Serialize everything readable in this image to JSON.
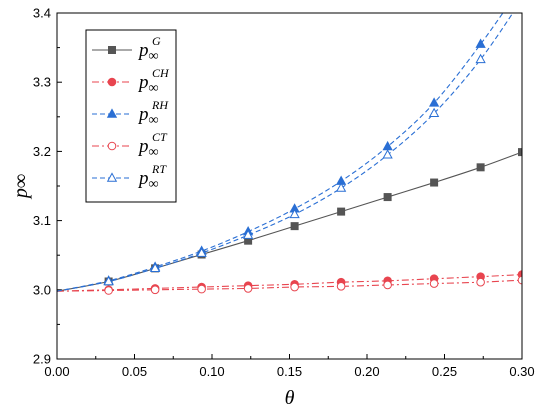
{
  "chart_data": {
    "type": "line",
    "xlabel": "θ",
    "ylabel": "p∞",
    "xlim": [
      0.0,
      0.3
    ],
    "ylim": [
      2.9,
      3.4
    ],
    "xticks": [
      "0.00",
      "0.05",
      "0.10",
      "0.15",
      "0.20",
      "0.25",
      "0.30"
    ],
    "yticks": [
      "2.9",
      "3.0",
      "3.1",
      "3.2",
      "3.3",
      "3.4"
    ],
    "grid": false,
    "legend_position": "top-left",
    "x": [
      0.0,
      0.0333,
      0.0633,
      0.0933,
      0.1233,
      0.1533,
      0.1833,
      0.2133,
      0.2433,
      0.2733,
      0.3
    ],
    "series": [
      {
        "name": "G",
        "color": "#555555",
        "style": "solid",
        "marker": "square-filled",
        "values": [
          2.998,
          3.012,
          3.031,
          3.051,
          3.071,
          3.092,
          3.113,
          3.134,
          3.155,
          3.177,
          3.199
        ]
      },
      {
        "name": "CH",
        "color": "#e8454f",
        "style": "dashdot",
        "marker": "circle-filled",
        "values": [
          2.998,
          3.0,
          3.002,
          3.004,
          3.006,
          3.008,
          3.011,
          3.013,
          3.016,
          3.019,
          3.022
        ]
      },
      {
        "name": "RH",
        "color": "#2a6fd4",
        "style": "dashed",
        "marker": "triangle-filled",
        "values": [
          2.998,
          3.013,
          3.033,
          3.056,
          3.084,
          3.117,
          3.157,
          3.207,
          3.27,
          3.355,
          3.44
        ]
      },
      {
        "name": "CT",
        "color": "#e8454f",
        "style": "dashdot",
        "marker": "circle-open",
        "values": [
          2.998,
          2.999,
          3.0,
          3.001,
          3.002,
          3.004,
          3.005,
          3.007,
          3.009,
          3.011,
          3.014
        ]
      },
      {
        "name": "RT",
        "color": "#2a6fd4",
        "style": "dashed",
        "marker": "triangle-open",
        "values": [
          2.998,
          3.012,
          3.031,
          3.053,
          3.079,
          3.109,
          3.147,
          3.195,
          3.255,
          3.333,
          3.42
        ]
      }
    ]
  }
}
